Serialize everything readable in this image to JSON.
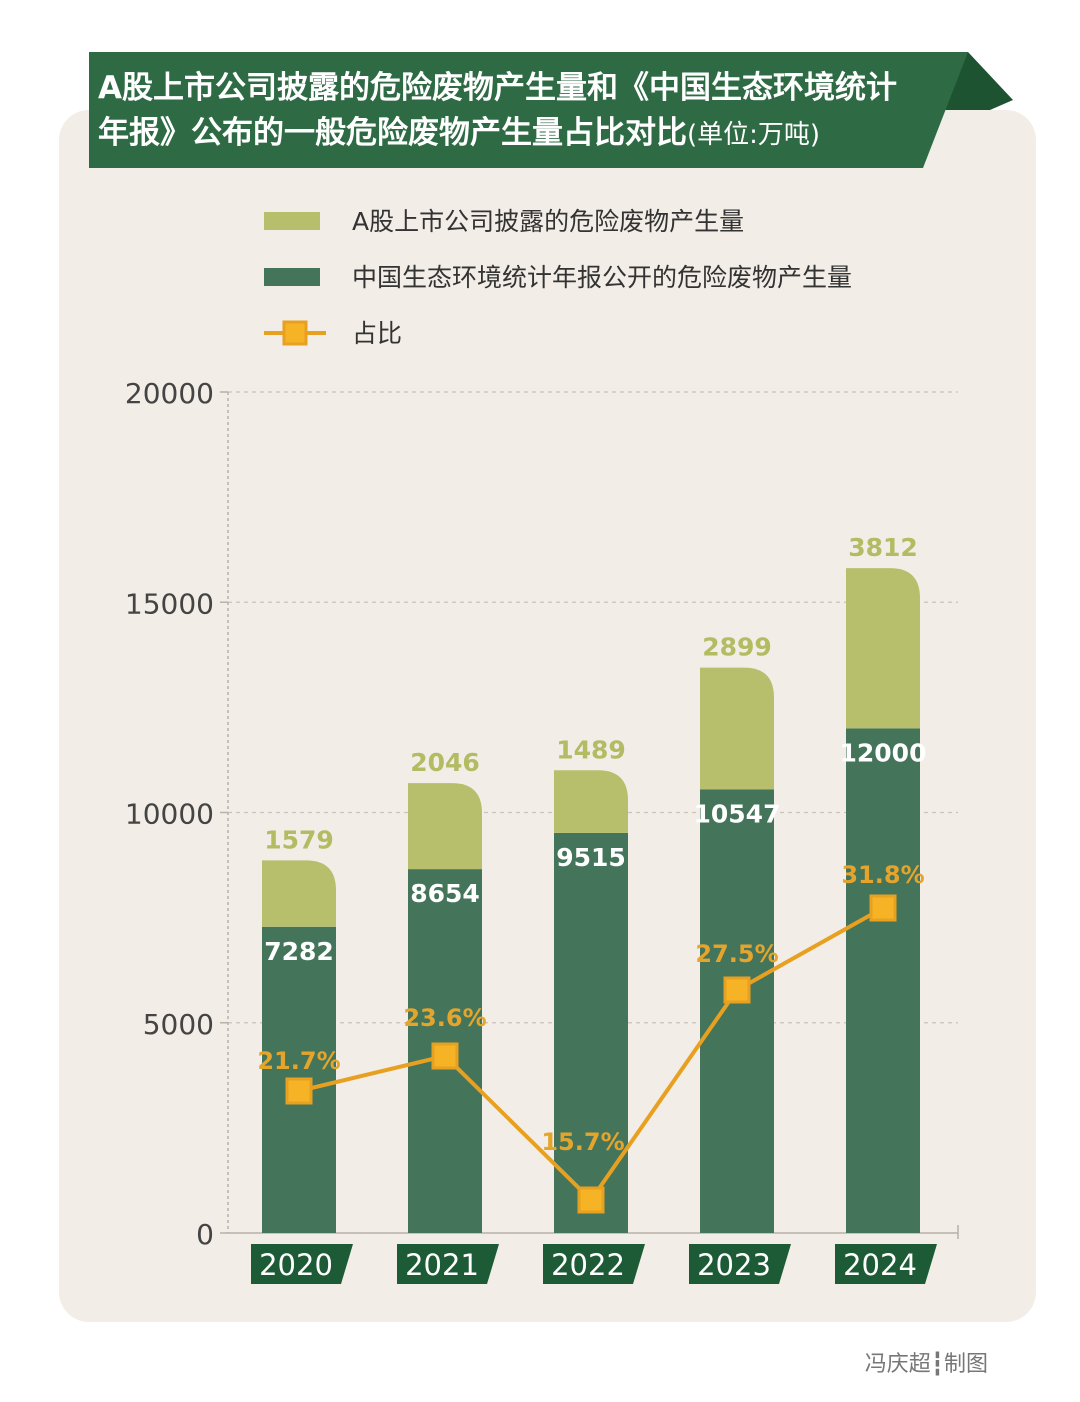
{
  "title": {
    "line1": "A股上市公司披露的危险废物产生量和《中国生态环境统计",
    "line2": "年报》公布的一般危险废物产生量占比对比",
    "unit": "(单位:万吨)"
  },
  "legend": {
    "series1": "A股上市公司披露的危险废物产生量",
    "series2": "中国生态环境统计年报公开的危险废物产生量",
    "series3": "占比"
  },
  "chart_data": {
    "type": "bar",
    "stacked": true,
    "categories": [
      "2020",
      "2021",
      "2022",
      "2023",
      "2024"
    ],
    "ylim": [
      0,
      20000
    ],
    "yticks": [
      "0",
      "5000",
      "10000",
      "15000",
      "20000"
    ],
    "grid": true,
    "legend_position": "top",
    "series": [
      {
        "name": "中国生态环境统计年报公开的危险废物产生量",
        "values": [
          7282,
          8654,
          9515,
          10547,
          12000
        ],
        "labels": [
          "7282",
          "8654",
          "9515",
          "10547",
          "12000"
        ],
        "color": "#44745a"
      },
      {
        "name": "A股上市公司披露的危险废物产生量",
        "values": [
          1579,
          2046,
          1489,
          2899,
          3812
        ],
        "labels": [
          "1579",
          "2046",
          "1489",
          "2899",
          "3812"
        ],
        "color": "#b7bf6d"
      }
    ],
    "ratio_series": {
      "name": "占比",
      "values": [
        21.7,
        23.6,
        15.7,
        27.5,
        31.8
      ],
      "labels": [
        "21.7%",
        "23.6%",
        "15.7%",
        "27.5%",
        "31.8%"
      ],
      "color": "#e8a021"
    }
  },
  "colors": {
    "banner": "#2e6b45",
    "banner_dark": "#1d5331",
    "bar_green": "#44745a",
    "bar_olive": "#b7bf6d",
    "ratio_line": "#e8a021",
    "card_bg": "#f2ede6"
  },
  "credit": "冯庆超┇制图"
}
